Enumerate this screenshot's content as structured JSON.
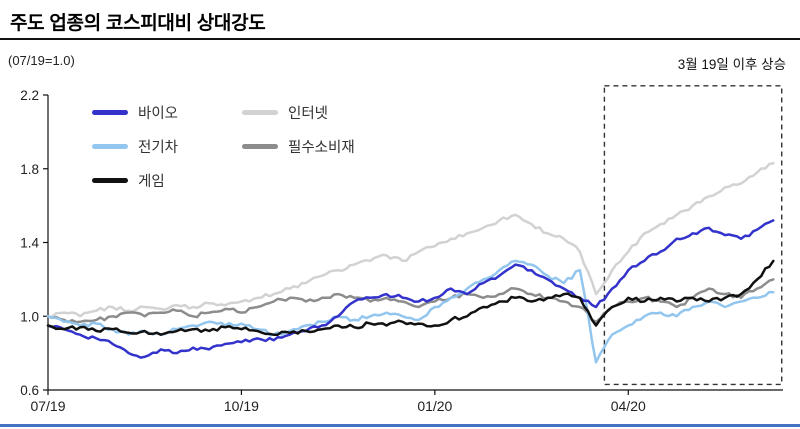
{
  "header": {
    "title": "주도 업종의 코스피대비 상대강도"
  },
  "footer": {
    "rule_color": "#4472c4"
  },
  "chart_data": {
    "type": "line",
    "title": "주도 업종의 코스피대비 상대강도",
    "unit_note": "(07/19=1.0)",
    "annotation": "3월 19일 이후 상승",
    "xlabel": "",
    "ylabel": "",
    "ylim": [
      0.6,
      2.2
    ],
    "xlim": [
      0,
      11.4
    ],
    "grid": false,
    "legend_position": "top-left-inside",
    "y_ticks": [
      0.6,
      1.0,
      1.4,
      1.8,
      2.2
    ],
    "x_ticks": [
      {
        "pos": 0,
        "label": "07/19"
      },
      {
        "pos": 3,
        "label": "10/19"
      },
      {
        "pos": 6,
        "label": "01/20"
      },
      {
        "pos": 9,
        "label": "04/20"
      }
    ],
    "annotation_box": {
      "x_from": 8.63,
      "x_to": 11.38,
      "y_from": 0.63,
      "y_to": 2.25
    },
    "x": [
      0,
      0.25,
      0.5,
      0.75,
      1,
      1.25,
      1.5,
      1.75,
      2,
      2.25,
      2.5,
      2.75,
      3,
      3.25,
      3.5,
      3.75,
      4,
      4.25,
      4.5,
      4.75,
      5,
      5.25,
      5.5,
      5.75,
      6,
      6.25,
      6.5,
      6.75,
      7,
      7.25,
      7.5,
      7.75,
      8,
      8.25,
      8.5,
      8.75,
      9,
      9.25,
      9.5,
      9.75,
      10,
      10.25,
      10.5,
      10.75,
      11,
      11.25
    ],
    "series": [
      {
        "name": "바이오",
        "color": "#3333cc",
        "values": [
          0.95,
          0.93,
          0.9,
          0.88,
          0.85,
          0.8,
          0.78,
          0.82,
          0.8,
          0.83,
          0.82,
          0.85,
          0.86,
          0.88,
          0.87,
          0.9,
          0.92,
          0.95,
          1.0,
          1.08,
          1.1,
          1.12,
          1.1,
          1.08,
          1.1,
          1.15,
          1.12,
          1.18,
          1.22,
          1.28,
          1.25,
          1.2,
          1.15,
          1.1,
          1.05,
          1.15,
          1.25,
          1.3,
          1.35,
          1.42,
          1.45,
          1.48,
          1.44,
          1.42,
          1.47,
          1.52
        ]
      },
      {
        "name": "인터넷",
        "color": "#d2d2d2",
        "values": [
          1.0,
          1.02,
          1.0,
          1.03,
          1.05,
          1.03,
          1.05,
          1.04,
          1.06,
          1.05,
          1.07,
          1.06,
          1.08,
          1.1,
          1.12,
          1.15,
          1.18,
          1.22,
          1.25,
          1.28,
          1.3,
          1.33,
          1.3,
          1.35,
          1.38,
          1.42,
          1.45,
          1.48,
          1.52,
          1.55,
          1.5,
          1.45,
          1.42,
          1.35,
          1.12,
          1.25,
          1.35,
          1.45,
          1.5,
          1.55,
          1.6,
          1.65,
          1.7,
          1.72,
          1.78,
          1.83
        ]
      },
      {
        "name": "전기차",
        "color": "#93c6ee",
        "values": [
          1.0,
          0.97,
          0.95,
          0.96,
          0.93,
          0.9,
          0.92,
          0.9,
          0.93,
          0.95,
          0.97,
          0.95,
          0.96,
          0.93,
          0.9,
          0.92,
          0.95,
          0.97,
          1.0,
          0.98,
          1.0,
          1.02,
          1.0,
          0.98,
          1.05,
          1.1,
          1.15,
          1.2,
          1.25,
          1.3,
          1.28,
          1.22,
          1.18,
          1.25,
          0.75,
          0.9,
          0.95,
          1.0,
          1.02,
          1.0,
          1.05,
          1.08,
          1.05,
          1.08,
          1.1,
          1.13
        ]
      },
      {
        "name": "필수소비재",
        "color": "#8c8c8c",
        "values": [
          1.0,
          0.98,
          0.97,
          0.98,
          1.0,
          1.02,
          1.0,
          1.02,
          1.03,
          1.0,
          1.02,
          1.04,
          1.02,
          1.05,
          1.08,
          1.1,
          1.08,
          1.1,
          1.12,
          1.1,
          1.08,
          1.1,
          1.08,
          1.05,
          1.08,
          1.1,
          1.12,
          1.1,
          1.12,
          1.15,
          1.12,
          1.1,
          1.08,
          1.05,
          0.97,
          1.05,
          1.08,
          1.1,
          1.08,
          1.05,
          1.1,
          1.15,
          1.12,
          1.1,
          1.15,
          1.2
        ]
      },
      {
        "name": "게임",
        "color": "#111111",
        "values": [
          0.95,
          0.93,
          0.94,
          0.92,
          0.93,
          0.91,
          0.92,
          0.9,
          0.92,
          0.93,
          0.92,
          0.94,
          0.93,
          0.92,
          0.9,
          0.91,
          0.92,
          0.93,
          0.95,
          0.94,
          0.96,
          0.95,
          0.97,
          0.96,
          0.95,
          0.98,
          1.0,
          1.05,
          1.08,
          1.1,
          1.08,
          1.1,
          1.12,
          1.1,
          0.95,
          1.05,
          1.1,
          1.08,
          1.1,
          1.08,
          1.1,
          1.08,
          1.1,
          1.12,
          1.2,
          1.3
        ]
      }
    ]
  }
}
